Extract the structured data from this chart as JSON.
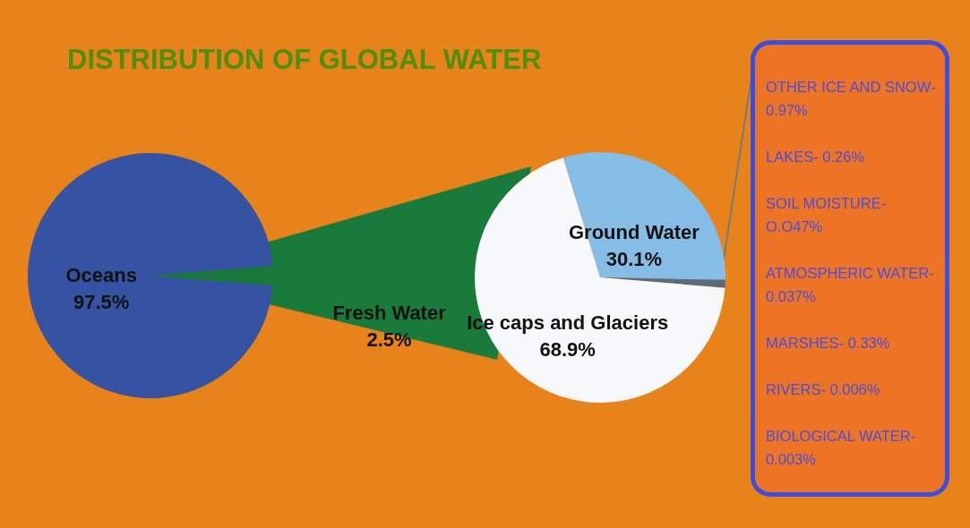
{
  "chart_data": [
    {
      "type": "pie",
      "title": "DISTRIBUTION OF GLOBAL WATER",
      "categories": [
        "Oceans",
        "Fresh Water"
      ],
      "values": [
        97.5,
        2.5
      ],
      "colors": [
        "#3552a3",
        "#1a7a3c"
      ],
      "value_labels": [
        "97.5%",
        "2.5%"
      ]
    },
    {
      "type": "pie",
      "categories": [
        "Ground Water",
        null,
        "Ice caps and Glaciers"
      ],
      "values": [
        30.1,
        1.0,
        68.9
      ],
      "colors": [
        "#85bde6",
        "#5b6b7b",
        "#f7f8fa"
      ],
      "value_labels": [
        "30.1%",
        null,
        "68.9%"
      ]
    },
    {
      "type": "other",
      "annotations": [
        "OTHER ICE AND SNOW- 0.97%",
        "LAKES- 0.26%",
        "SOIL MOISTURE- O.O47%",
        "ATMOSPHERIC WATER- 0.037%",
        "MARSHES- 0.33%",
        "RIVERS- 0.006%",
        "BIOLOGICAL WATER- 0.003%"
      ]
    }
  ]
}
